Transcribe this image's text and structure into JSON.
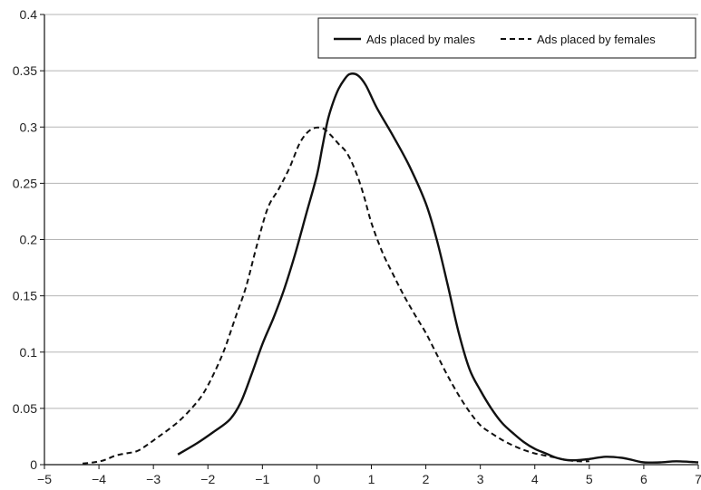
{
  "chart_data": {
    "type": "line",
    "title": "",
    "xlabel": "",
    "ylabel": "",
    "xlim": [
      -5,
      7
    ],
    "ylim": [
      0,
      0.4
    ],
    "x_ticks": [
      -5,
      -4,
      -3,
      -2,
      -1,
      0,
      1,
      2,
      3,
      4,
      5,
      6,
      7
    ],
    "x_tick_labels": [
      "−5",
      "−4",
      "−3",
      "−2",
      "−1",
      "0",
      "1",
      "2",
      "3",
      "4",
      "5",
      "6",
      "7"
    ],
    "y_ticks": [
      0,
      0.05,
      0.1,
      0.15,
      0.2,
      0.25,
      0.3,
      0.35,
      0.4
    ],
    "y_tick_labels": [
      "0",
      "0.05",
      "0.1",
      "0.15",
      "0.2",
      "0.25",
      "0.3",
      "0.35",
      "0.4"
    ],
    "grid": "horizontal",
    "legend_position": "top-right",
    "series": [
      {
        "name": "Ads placed by males",
        "style": "solid",
        "color": "#111111",
        "x": [
          -2.55,
          -2.2,
          -1.9,
          -1.6,
          -1.4,
          -1.2,
          -1.0,
          -0.8,
          -0.6,
          -0.4,
          -0.2,
          0.0,
          0.1,
          0.2,
          0.3,
          0.4,
          0.5,
          0.6,
          0.75,
          0.9,
          1.1,
          1.4,
          1.7,
          2.0,
          2.2,
          2.4,
          2.6,
          2.8,
          3.0,
          3.2,
          3.4,
          3.6,
          3.8,
          4.0,
          4.2,
          4.4,
          4.6,
          4.8,
          5.0,
          5.3,
          5.6,
          5.8,
          6.0,
          6.3,
          6.6,
          7.0
        ],
        "y": [
          0.009,
          0.019,
          0.029,
          0.04,
          0.055,
          0.08,
          0.107,
          0.13,
          0.156,
          0.187,
          0.222,
          0.257,
          0.282,
          0.306,
          0.322,
          0.334,
          0.342,
          0.347,
          0.346,
          0.337,
          0.317,
          0.292,
          0.265,
          0.232,
          0.2,
          0.16,
          0.118,
          0.085,
          0.066,
          0.05,
          0.037,
          0.028,
          0.02,
          0.014,
          0.01,
          0.006,
          0.004,
          0.004,
          0.005,
          0.007,
          0.006,
          0.004,
          0.002,
          0.002,
          0.003,
          0.002
        ]
      },
      {
        "name": "Ads placed by females",
        "style": "dashed",
        "color": "#111111",
        "x": [
          -4.3,
          -4.1,
          -3.9,
          -3.7,
          -3.5,
          -3.3,
          -3.1,
          -2.9,
          -2.7,
          -2.5,
          -2.3,
          -2.1,
          -1.9,
          -1.7,
          -1.5,
          -1.3,
          -1.1,
          -0.9,
          -0.7,
          -0.5,
          -0.3,
          -0.1,
          0.1,
          0.25,
          0.4,
          0.55,
          0.7,
          0.85,
          1.0,
          1.2,
          1.4,
          1.6,
          1.8,
          2.0,
          2.2,
          2.4,
          2.6,
          2.8,
          3.0,
          3.2,
          3.4,
          3.6,
          3.8,
          4.0,
          4.2,
          4.4,
          4.6,
          4.8,
          5.0
        ],
        "y": [
          0.001,
          0.002,
          0.004,
          0.008,
          0.01,
          0.012,
          0.018,
          0.025,
          0.032,
          0.04,
          0.05,
          0.062,
          0.08,
          0.102,
          0.13,
          0.158,
          0.195,
          0.228,
          0.245,
          0.264,
          0.287,
          0.298,
          0.299,
          0.293,
          0.285,
          0.277,
          0.262,
          0.241,
          0.215,
          0.189,
          0.169,
          0.15,
          0.133,
          0.117,
          0.098,
          0.079,
          0.062,
          0.047,
          0.035,
          0.028,
          0.022,
          0.017,
          0.013,
          0.01,
          0.008,
          0.006,
          0.004,
          0.003,
          0.003
        ]
      }
    ]
  }
}
